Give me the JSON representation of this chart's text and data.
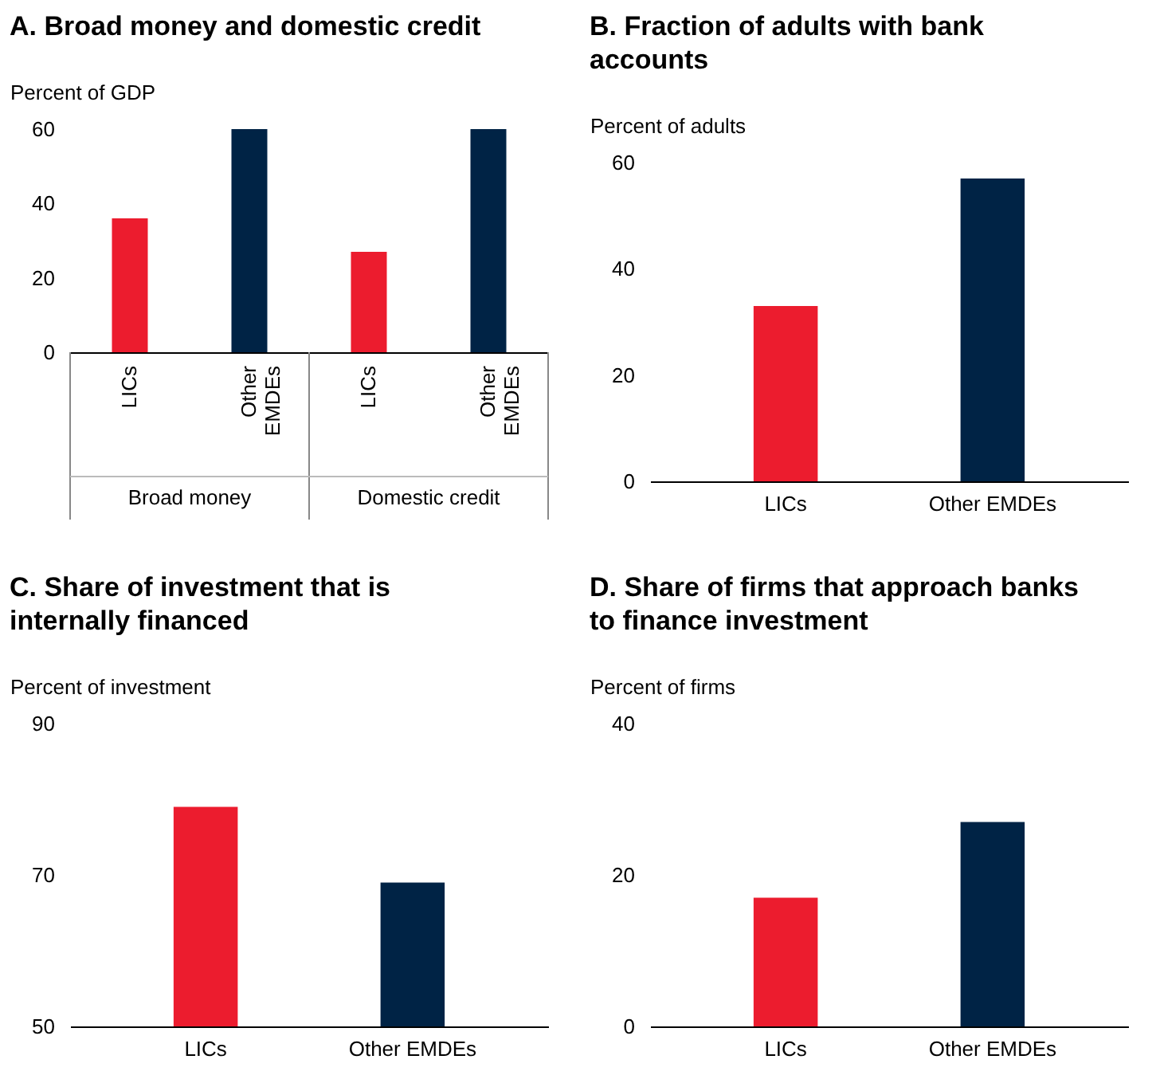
{
  "chart_data": [
    {
      "type": "bar",
      "title": "A. Broad money and domestic credit",
      "ylabel": "Percent of GDP",
      "categories": [
        "LICs",
        "Other EMDEs",
        "LICs",
        "Other EMDEs"
      ],
      "values": [
        36,
        60,
        27,
        60
      ],
      "colors": [
        "#ec1c2e",
        "#002345",
        "#ec1c2e",
        "#002345"
      ],
      "ylim": [
        0,
        60
      ],
      "yticks": [
        0,
        20,
        40,
        60
      ],
      "annotations": [
        "Broad money",
        "Domestic credit"
      ]
    },
    {
      "type": "bar",
      "title": "B. Fraction of adults with bank accounts",
      "ylabel": "Percent of adults",
      "categories": [
        "LICs",
        "Other EMDEs"
      ],
      "values": [
        33,
        57
      ],
      "colors": [
        "#ec1c2e",
        "#002345"
      ],
      "ylim": [
        0,
        60
      ],
      "yticks": [
        0,
        20,
        40,
        60
      ]
    },
    {
      "type": "bar",
      "title": "C. Share of investment that is internally financed",
      "ylabel": "Percent of investment",
      "categories": [
        "LICs",
        "Other EMDEs"
      ],
      "values": [
        79,
        69
      ],
      "colors": [
        "#ec1c2e",
        "#002345"
      ],
      "ylim": [
        50,
        90
      ],
      "yticks": [
        50,
        70,
        90
      ]
    },
    {
      "type": "bar",
      "title": "D. Share of firms that approach banks to finance investment",
      "ylabel": "Percent of firms",
      "categories": [
        "LICs",
        "Other EMDEs"
      ],
      "values": [
        17,
        27
      ],
      "colors": [
        "#ec1c2e",
        "#002345"
      ],
      "ylim": [
        0,
        40
      ],
      "yticks": [
        0,
        20,
        40
      ]
    }
  ]
}
